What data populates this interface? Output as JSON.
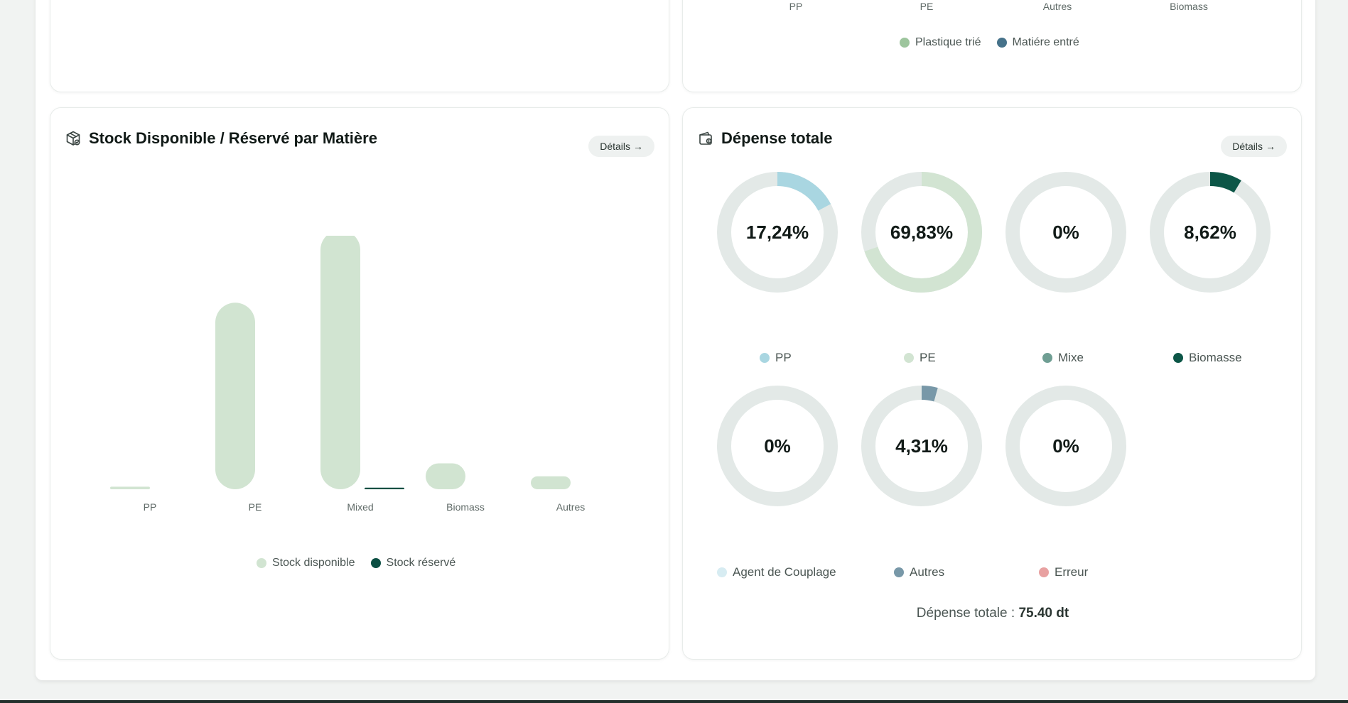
{
  "colors": {
    "plastique": "#9dc59d",
    "matiere": "#46728a",
    "stock_disponible": "#d1e4d1",
    "stock_reserve": "#0c4f43",
    "donut_track": "#e3e9e7",
    "pp": "#a9d6e1",
    "pe": "#d2e4d2",
    "mixe": "#6f9e93",
    "biomasse": "#0c5647",
    "agent": "#d7ecf2",
    "autres": "#7898a8",
    "erreur": "#e8a1a1"
  },
  "top_chart": {
    "categories": [
      "PP",
      "PE",
      "Autres",
      "Biomass"
    ],
    "legend": [
      {
        "label": "Plastique trié",
        "color": "#9dc59d"
      },
      {
        "label": "Matiére entré",
        "color": "#46728a"
      }
    ]
  },
  "stock_card": {
    "title": "Stock Disponible / Réservé par Matière",
    "icon": "package-icon",
    "details_label": "Détails",
    "chart_data": {
      "type": "bar",
      "categories": [
        "PP",
        "PE",
        "Mixed",
        "Biomass",
        "Autres"
      ],
      "series": [
        {
          "name": "Stock disponible",
          "values": [
            1,
            72,
            100,
            10,
            5
          ]
        },
        {
          "name": "Stock réservé",
          "values": [
            0,
            0,
            0.6,
            0,
            0
          ]
        }
      ],
      "ylim": [
        0,
        100
      ]
    },
    "legend": [
      {
        "label": "Stock disponible"
      },
      {
        "label": "Stock réservé"
      }
    ]
  },
  "depense_card": {
    "title": "Dépense totale",
    "icon": "wallet-icon",
    "details_label": "Détails",
    "donuts": [
      {
        "name": "PP",
        "label": "17,24%",
        "value": 17.24,
        "color": "#a9d6e1"
      },
      {
        "name": "PE",
        "label": "69,83%",
        "value": 69.83,
        "color": "#d2e4d2"
      },
      {
        "name": "Mixe",
        "label": "0%",
        "value": 0,
        "color": "#6f9e93"
      },
      {
        "name": "Biomasse",
        "label": "8,62%",
        "value": 8.62,
        "color": "#0c5647"
      },
      {
        "name": "Agent de Couplage",
        "label": "0%",
        "value": 0,
        "color": "#d7ecf2"
      },
      {
        "name": "Autres",
        "label": "4,31%",
        "value": 4.31,
        "color": "#7898a8"
      },
      {
        "name": "Erreur",
        "label": "0%",
        "value": 0,
        "color": "#e8a1a1"
      }
    ],
    "legend_row1": [
      "PP",
      "PE",
      "Mixe",
      "Biomasse"
    ],
    "legend_row2": [
      "Agent de Couplage",
      "Autres",
      "Erreur"
    ],
    "total_prefix": "Dépense totale :",
    "total_value": "75.40 dt"
  }
}
